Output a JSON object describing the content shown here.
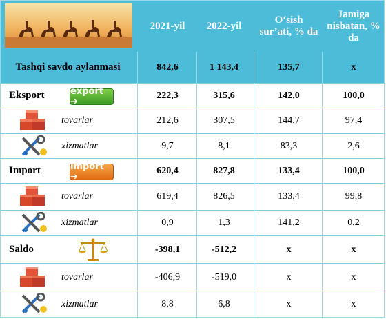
{
  "header": {
    "col_2021": "2021-yil",
    "col_2022": "2022-yil",
    "col_growth": "O‘sish sur’ati, % da",
    "col_share": "Jamiga nisbatan, % da"
  },
  "rows": [
    {
      "label": "Tashqi savdo aylanmasi",
      "v2021": "842,6",
      "v2022": "1 143,4",
      "growth": "135,7",
      "share": "x"
    },
    {
      "label": "Eksport",
      "v2021": "222,3",
      "v2022": "315,6",
      "growth": "142,0",
      "share": "100,0",
      "badge": "export"
    },
    {
      "label": "tovarlar",
      "v2021": "212,6",
      "v2022": "307,5",
      "growth": "144,7",
      "share": "97,4"
    },
    {
      "label": "xizmatlar",
      "v2021": "9,7",
      "v2022": "8,1",
      "growth": "83,3",
      "share": "2,6"
    },
    {
      "label": "Import",
      "v2021": "620,4",
      "v2022": "827,8",
      "growth": "133,4",
      "share": "100,0",
      "badge": "import"
    },
    {
      "label": "tovarlar",
      "v2021": "619,4",
      "v2022": "826,5",
      "growth": "133,4",
      "share": "99,8"
    },
    {
      "label": "xizmatlar",
      "v2021": "0,9",
      "v2022": "1,3",
      "growth": "141,2",
      "share": "0,2"
    },
    {
      "label": "Saldo",
      "v2021": "-398,1",
      "v2022": "-512,2",
      "growth": "x",
      "share": "x"
    },
    {
      "label": "tovarlar",
      "v2021": "-406,9",
      "v2022": "-519,0",
      "growth": "x",
      "share": "x"
    },
    {
      "label": "xizmatlar",
      "v2021": "8,8",
      "v2022": "6,8",
      "growth": "x",
      "share": "x"
    }
  ],
  "colors": {
    "header_bg": "#4dbcd9",
    "grid": "#9fd6e6"
  },
  "icons": [
    "caravan-banner",
    "export-badge",
    "import-badge",
    "boxes-icon",
    "tools-icon",
    "scales-icon"
  ]
}
